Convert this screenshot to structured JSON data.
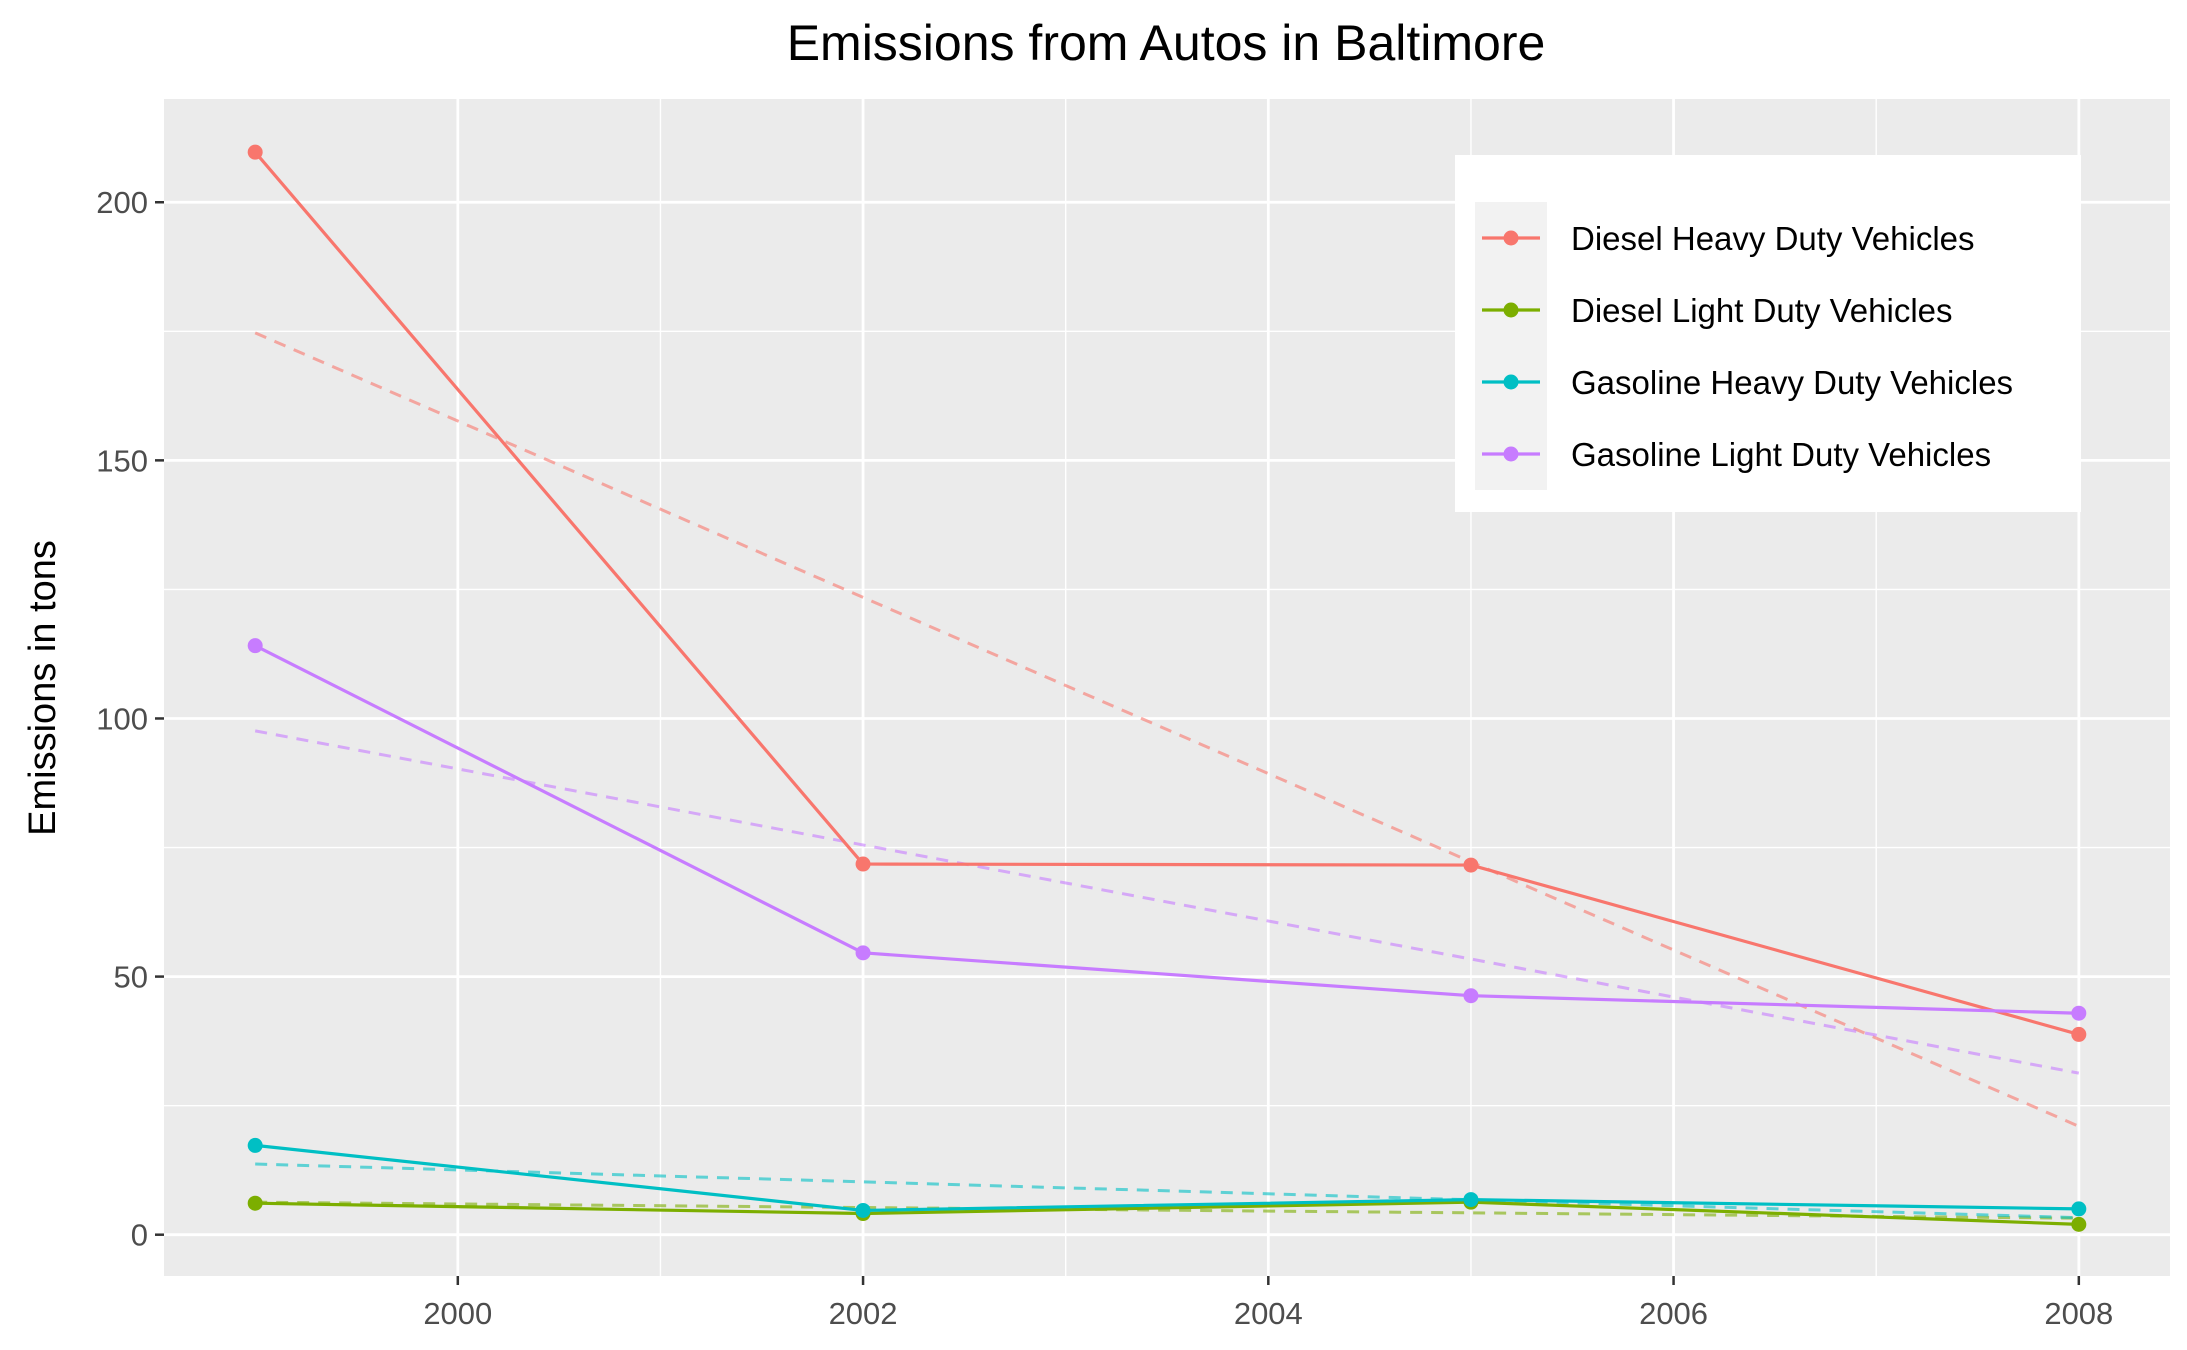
{
  "chart_data": {
    "type": "line",
    "title": "Emissions from Autos in Baltimore",
    "xlabel": "",
    "ylabel": "Emissions in tons",
    "x": [
      1999,
      2002,
      2005,
      2008
    ],
    "xlim": [
      1998.55,
      2008.45
    ],
    "ylim": [
      -8,
      220
    ],
    "x_ticks": [
      2000,
      2002,
      2004,
      2006,
      2008
    ],
    "y_ticks": [
      0,
      50,
      100,
      150,
      200
    ],
    "x_tick_labels": [
      "2000",
      "2002",
      "2004",
      "2006",
      "2008"
    ],
    "y_tick_labels": [
      "0",
      "50",
      "100",
      "150",
      "200"
    ],
    "grid": true,
    "panel_background": "#ebebeb",
    "legend_placement": "top-right",
    "trend_lines": "dashed linear fit per series",
    "series": [
      {
        "name": "Diesel Heavy Duty Vehicles",
        "color": "#F8766D",
        "values": [
          209.7,
          71.8,
          71.6,
          38.8
        ],
        "trend": [
          174.7,
          21.0
        ]
      },
      {
        "name": "Diesel Light Duty Vehicles",
        "color": "#7CAE00",
        "values": [
          6.1,
          4.1,
          6.3,
          2.0
        ],
        "trend": [
          6.3,
          3.2
        ]
      },
      {
        "name": "Gasoline Heavy Duty Vehicles",
        "color": "#00BFC4",
        "values": [
          17.3,
          4.7,
          6.8,
          5.0
        ],
        "trend": [
          13.7,
          3.3
        ]
      },
      {
        "name": "Gasoline Light Duty Vehicles",
        "color": "#C77CFF",
        "values": [
          114.1,
          54.6,
          46.3,
          42.9
        ],
        "trend": [
          97.6,
          31.3
        ]
      }
    ]
  }
}
